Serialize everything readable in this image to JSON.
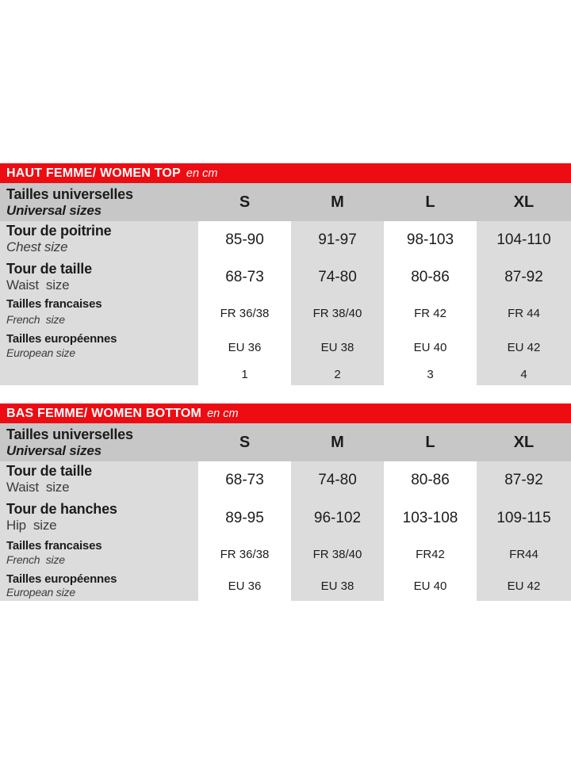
{
  "colors": {
    "accent_red": "#ee0c13",
    "header_gray": "#c7c7c7",
    "cell_gray": "#dcdcdc"
  },
  "tables": [
    {
      "title": "HAUT FEMME/ WOMEN TOP",
      "title_suffix": "en cm",
      "header": {
        "label_fr": "Tailles universelles",
        "label_en": "Universal sizes",
        "columns": [
          "S",
          "M",
          "L",
          "XL"
        ]
      },
      "rows": [
        {
          "label_fr": "Tour de poitrine",
          "label_en": "Chest size",
          "values": [
            "85-90",
            "91-97",
            "98-103",
            "104-110"
          ]
        },
        {
          "label_fr": "Tour de taille",
          "label_en": "Waist  size",
          "values": [
            "68-73",
            "74-80",
            "80-86",
            "87-92"
          ]
        },
        {
          "label_fr": "Tailles francaises",
          "label_en": "French  size",
          "values": [
            "FR 36/38",
            "FR 38/40",
            "FR 42",
            "FR 44"
          ]
        },
        {
          "label_fr": "Tailles européennes",
          "label_en": "European size",
          "values": [
            "EU 36",
            "EU 38",
            "EU 40",
            "EU 42"
          ]
        },
        {
          "label_fr": "",
          "label_en": "",
          "values": [
            "1",
            "2",
            "3",
            "4"
          ]
        }
      ]
    },
    {
      "title": "BAS FEMME/ WOMEN BOTTOM",
      "title_suffix": "en cm",
      "header": {
        "label_fr": "Tailles universelles",
        "label_en": "Universal sizes",
        "columns": [
          "S",
          "M",
          "L",
          "XL"
        ]
      },
      "rows": [
        {
          "label_fr": "Tour de taille",
          "label_en": "Waist  size",
          "values": [
            "68-73",
            "74-80",
            "80-86",
            "87-92"
          ]
        },
        {
          "label_fr": "Tour de hanches",
          "label_en": "Hip  size",
          "values": [
            "89-95",
            "96-102",
            "103-108",
            "109-115"
          ]
        },
        {
          "label_fr": "Tailles francaises",
          "label_en": "French  size",
          "values": [
            "FR 36/38",
            "FR 38/40",
            "FR42",
            "FR44"
          ]
        },
        {
          "label_fr": "Tailles européennes",
          "label_en": "European size",
          "values": [
            "EU 36",
            "EU 38",
            "EU 40",
            "EU 42"
          ]
        }
      ]
    }
  ]
}
